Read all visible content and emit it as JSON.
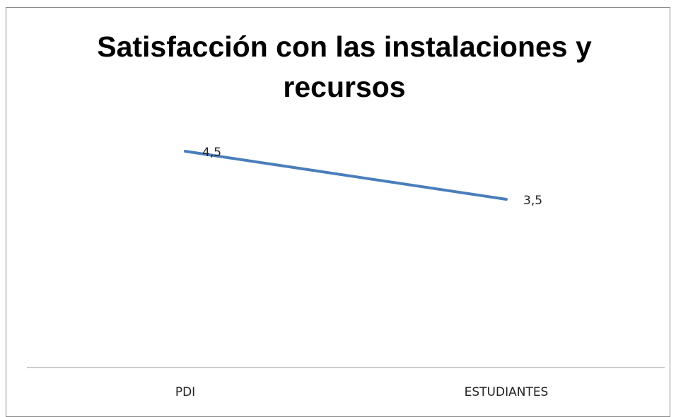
{
  "chart_data": {
    "type": "line",
    "title": "Satisfacción con las instalaciones y recursos",
    "categories": [
      "PDI",
      "ESTUDIANTES"
    ],
    "values": [
      4.5,
      3.5
    ],
    "value_labels": [
      "4,5",
      "3,5"
    ],
    "color": "#4a7ebb",
    "ylim": [
      0,
      6
    ]
  }
}
